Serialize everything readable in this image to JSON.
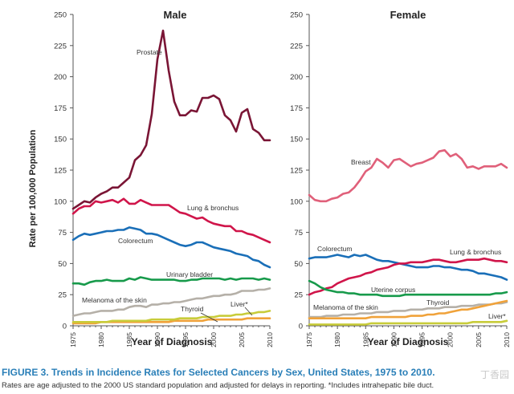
{
  "y_axis_label": "Rate per 100,000 Population",
  "x_axis_label": "Year of Diagnosis",
  "caption": {
    "title": "FIGURE 3. Trends in Incidence Rates for Selected Cancers by Sex, United States, 1975 to 2010.",
    "note": "Rates are age adjusted to the 2000 US standard population and adjusted for delays in reporting. *Includes intrahepatic bile duct."
  },
  "watermark": "丁香园",
  "chart_data": [
    {
      "type": "line",
      "title": "Male",
      "xlabel": "Year of Diagnosis",
      "ylabel": "Rate per 100,000 Population",
      "xlim": [
        1975,
        2010
      ],
      "ylim": [
        0,
        250
      ],
      "xticks": [
        "1975",
        "1980",
        "1985",
        "1990",
        "1995",
        "2000",
        "2005",
        "2010"
      ],
      "yticks": [
        "0",
        "25",
        "50",
        "75",
        "100",
        "125",
        "150",
        "175",
        "200",
        "225",
        "250"
      ],
      "grid": false,
      "x": [
        1975,
        1976,
        1977,
        1978,
        1979,
        1980,
        1981,
        1982,
        1983,
        1984,
        1985,
        1986,
        1987,
        1988,
        1989,
        1990,
        1991,
        1992,
        1993,
        1994,
        1995,
        1996,
        1997,
        1998,
        1999,
        2000,
        2001,
        2002,
        2003,
        2004,
        2005,
        2006,
        2007,
        2008,
        2009,
        2010
      ],
      "series": [
        {
          "name": "Prostate",
          "color": "#7a1535",
          "values": [
            94,
            97,
            100,
            99,
            103,
            106,
            108,
            111,
            111,
            115,
            119,
            133,
            137,
            145,
            170,
            214,
            237,
            205,
            180,
            169,
            169,
            173,
            172,
            183,
            183,
            185,
            182,
            169,
            165,
            156,
            171,
            174,
            158,
            155,
            149,
            149
          ]
        },
        {
          "name": "Lung & bronchus",
          "color": "#d0154a",
          "values": [
            90,
            94,
            96,
            96,
            100,
            99,
            100,
            101,
            99,
            102,
            98,
            98,
            101,
            99,
            97,
            97,
            97,
            97,
            94,
            91,
            90,
            88,
            86,
            87,
            84,
            82,
            81,
            80,
            80,
            76,
            76,
            74,
            73,
            71,
            69,
            67
          ]
        },
        {
          "name": "Colorectum",
          "color": "#1a6fb8",
          "values": [
            69,
            72,
            74,
            73,
            74,
            75,
            76,
            76,
            77,
            77,
            79,
            78,
            77,
            74,
            74,
            73,
            71,
            69,
            67,
            65,
            64,
            65,
            67,
            67,
            65,
            63,
            62,
            61,
            60,
            58,
            57,
            56,
            53,
            52,
            49,
            47
          ]
        },
        {
          "name": "Urinary bladder",
          "color": "#179a4b",
          "values": [
            34,
            34,
            33,
            35,
            36,
            36,
            37,
            36,
            36,
            36,
            38,
            37,
            39,
            38,
            37,
            37,
            37,
            37,
            37,
            36,
            36,
            37,
            37,
            38,
            38,
            38,
            38,
            37,
            38,
            37,
            38,
            38,
            38,
            37,
            38,
            37
          ]
        },
        {
          "name": "Melanoma of the skin",
          "color": "#b5b0a8",
          "values": [
            8,
            9,
            10,
            10,
            11,
            12,
            12,
            12,
            13,
            13,
            15,
            16,
            16,
            15,
            17,
            17,
            18,
            18,
            19,
            19,
            20,
            21,
            22,
            22,
            23,
            24,
            24,
            25,
            25,
            26,
            28,
            28,
            28,
            29,
            29,
            30
          ]
        },
        {
          "name": "Thyroid",
          "color": "#f0a23a",
          "values": [
            2,
            2,
            2,
            2,
            2,
            3,
            3,
            3,
            3,
            3,
            3,
            3,
            3,
            3,
            3,
            3,
            3,
            3,
            4,
            4,
            4,
            4,
            4,
            4,
            5,
            5,
            5,
            5,
            5,
            5,
            5,
            6,
            6,
            6,
            6,
            6
          ]
        },
        {
          "name": "Liver*",
          "color": "#c8cc3a",
          "values": [
            3,
            3,
            3,
            3,
            3,
            3,
            3,
            4,
            4,
            4,
            4,
            4,
            4,
            4,
            5,
            5,
            5,
            5,
            5,
            6,
            6,
            6,
            6,
            7,
            7,
            7,
            8,
            8,
            8,
            9,
            9,
            10,
            10,
            11,
            11,
            12
          ]
        }
      ]
    },
    {
      "type": "line",
      "title": "Female",
      "xlabel": "Year of Diagnosis",
      "ylabel": "",
      "xlim": [
        1975,
        2010
      ],
      "ylim": [
        0,
        250
      ],
      "xticks": [
        "1975",
        "1980",
        "1985",
        "1990",
        "1995",
        "2000",
        "2005",
        "2010"
      ],
      "yticks": [
        "0",
        "25",
        "50",
        "75",
        "100",
        "125",
        "150",
        "175",
        "200",
        "225",
        "250"
      ],
      "grid": false,
      "x": [
        1975,
        1976,
        1977,
        1978,
        1979,
        1980,
        1981,
        1982,
        1983,
        1984,
        1985,
        1986,
        1987,
        1988,
        1989,
        1990,
        1991,
        1992,
        1993,
        1994,
        1995,
        1996,
        1997,
        1998,
        1999,
        2000,
        2001,
        2002,
        2003,
        2004,
        2005,
        2006,
        2007,
        2008,
        2009,
        2010
      ],
      "series": [
        {
          "name": "Breast",
          "color": "#e0607a",
          "values": [
            105,
            101,
            100,
            100,
            102,
            103,
            106,
            107,
            111,
            117,
            124,
            127,
            134,
            131,
            127,
            133,
            134,
            131,
            128,
            130,
            131,
            133,
            135,
            140,
            141,
            136,
            138,
            134,
            127,
            128,
            126,
            128,
            128,
            128,
            130,
            127
          ]
        },
        {
          "name": "Colorectum",
          "color": "#1a6fb8",
          "values": [
            54,
            55,
            55,
            55,
            56,
            57,
            56,
            55,
            57,
            56,
            57,
            55,
            53,
            52,
            52,
            51,
            50,
            49,
            48,
            47,
            47,
            47,
            48,
            48,
            47,
            47,
            46,
            45,
            45,
            44,
            42,
            42,
            41,
            40,
            39,
            37
          ]
        },
        {
          "name": "Lung & bronchus",
          "color": "#d0154a",
          "values": [
            25,
            27,
            28,
            30,
            31,
            34,
            36,
            38,
            39,
            40,
            42,
            43,
            45,
            46,
            47,
            49,
            50,
            50,
            51,
            51,
            51,
            52,
            53,
            53,
            52,
            51,
            51,
            52,
            53,
            53,
            53,
            54,
            53,
            52,
            52,
            51
          ]
        },
        {
          "name": "Uterine corpus",
          "color": "#179a4b",
          "values": [
            36,
            34,
            31,
            29,
            28,
            27,
            27,
            26,
            26,
            25,
            25,
            25,
            25,
            24,
            24,
            24,
            24,
            25,
            25,
            25,
            25,
            25,
            25,
            25,
            25,
            25,
            25,
            25,
            25,
            25,
            25,
            25,
            25,
            26,
            26,
            27
          ]
        },
        {
          "name": "Melanoma of the skin",
          "color": "#b5b0a8",
          "values": [
            7,
            7,
            7,
            8,
            8,
            8,
            9,
            9,
            9,
            10,
            10,
            10,
            11,
            11,
            11,
            12,
            12,
            12,
            13,
            13,
            13,
            14,
            14,
            14,
            15,
            15,
            15,
            16,
            16,
            16,
            17,
            17,
            17,
            18,
            18,
            19
          ]
        },
        {
          "name": "Thyroid",
          "color": "#f0a23a",
          "values": [
            6,
            6,
            6,
            6,
            6,
            6,
            6,
            6,
            6,
            6,
            6,
            7,
            7,
            7,
            7,
            7,
            7,
            7,
            8,
            8,
            8,
            9,
            9,
            10,
            10,
            11,
            12,
            13,
            13,
            14,
            15,
            16,
            17,
            18,
            19,
            20
          ]
        },
        {
          "name": "Liver*",
          "color": "#c8cc3a",
          "values": [
            1,
            1,
            1,
            1,
            1,
            1,
            1,
            1,
            1,
            1,
            1,
            2,
            2,
            2,
            2,
            2,
            2,
            2,
            2,
            2,
            2,
            2,
            2,
            2,
            2,
            2,
            2,
            2,
            2,
            3,
            3,
            3,
            3,
            3,
            3,
            4
          ]
        }
      ]
    }
  ]
}
